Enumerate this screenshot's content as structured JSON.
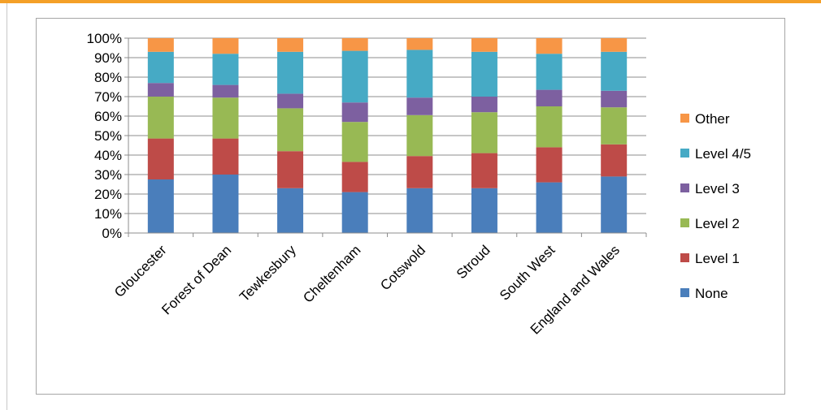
{
  "chart_data": {
    "type": "bar",
    "stacked": true,
    "percent": true,
    "categories": [
      "Gloucester",
      "Forest of Dean",
      "Tewkesbury",
      "Cheltenham",
      "Cotswold",
      "Stroud",
      "South West",
      "England and Wales"
    ],
    "yticks": [
      "0%",
      "10%",
      "20%",
      "30%",
      "40%",
      "50%",
      "60%",
      "70%",
      "80%",
      "90%",
      "100%"
    ],
    "ylim": [
      0,
      100
    ],
    "grid": true,
    "legend_position": "right",
    "series": [
      {
        "name": "None",
        "color": "#4a7ebb",
        "values": [
          27.5,
          30,
          23,
          21,
          23,
          23,
          26,
          29
        ]
      },
      {
        "name": "Level 1",
        "color": "#be4b48",
        "values": [
          21,
          18.5,
          19,
          15.5,
          16.5,
          18,
          18,
          16.5
        ]
      },
      {
        "name": "Level 2",
        "color": "#98b954",
        "values": [
          21.5,
          21,
          22,
          20.5,
          21,
          21,
          21,
          19
        ]
      },
      {
        "name": "Level 3",
        "color": "#7d60a0",
        "values": [
          7,
          6.5,
          7.5,
          10,
          9,
          8,
          8.5,
          8.5
        ]
      },
      {
        "name": "Level 4/5",
        "color": "#46aac5",
        "values": [
          16,
          16,
          21.5,
          26.5,
          24.5,
          23,
          18.5,
          20
        ]
      },
      {
        "name": "Other",
        "color": "#f79646",
        "values": [
          7,
          8,
          7,
          6.5,
          6,
          7,
          8,
          7
        ]
      }
    ]
  }
}
